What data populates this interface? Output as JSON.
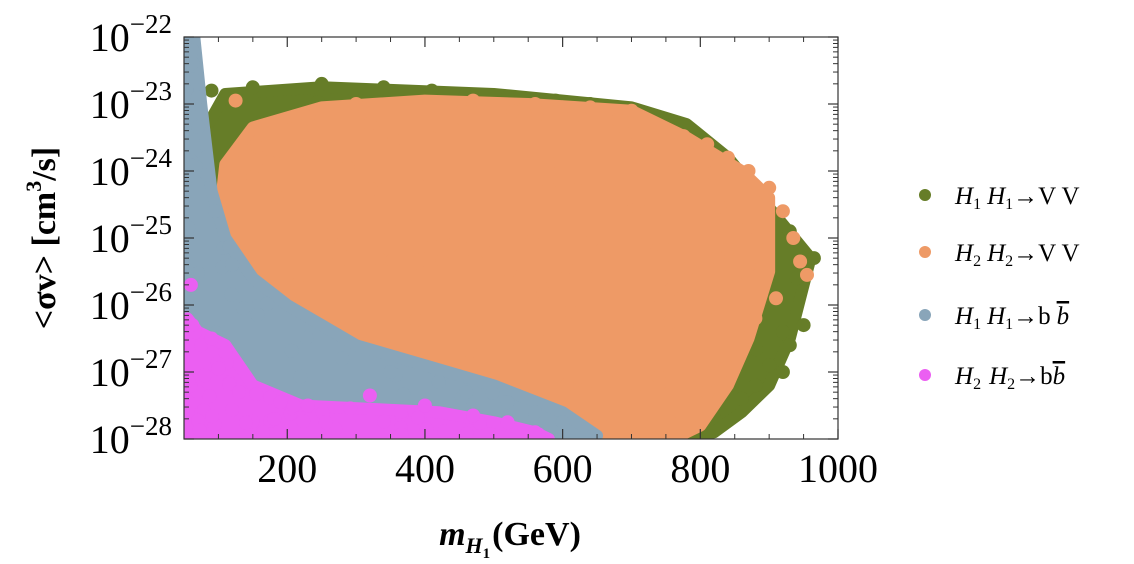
{
  "chart_data": {
    "type": "scatter",
    "xlabel": {
      "main": "m",
      "sub1": "H",
      "sub2": "1",
      "unit": "(GeV)"
    },
    "ylabel": {
      "main": "<σv> [cm",
      "sup": "3",
      "unit": "/s]"
    },
    "xlim": [
      50,
      1000
    ],
    "ylim_log10": [
      -28,
      -22
    ],
    "y_log_scale": true,
    "x_ticks": [
      200,
      400,
      600,
      800,
      1000
    ],
    "x_tick_labels": [
      "200",
      "400",
      "600",
      "800",
      "1000"
    ],
    "y_ticks": [
      -22,
      -23,
      -24,
      -25,
      -26,
      -27,
      -28
    ],
    "y_tick_base": "10",
    "y_tick_exponents": [
      "−22",
      "−23",
      "−24",
      "−25",
      "−26",
      "−27",
      "−28"
    ],
    "grid": false,
    "legend_placement": "right",
    "series": [
      {
        "legend": {
          "a": "H",
          "a_sub": "1",
          "b": "H",
          "b_sub": "1",
          "arrow": "→",
          "final": "V V"
        },
        "color": "#667d28",
        "region": [
          [
            80,
            -23.4
          ],
          [
            110,
            -22.85
          ],
          [
            250,
            -22.75
          ],
          [
            500,
            -22.85
          ],
          [
            600,
            -22.95
          ],
          [
            700,
            -23.05
          ],
          [
            780,
            -23.3
          ],
          [
            840,
            -23.8
          ],
          [
            880,
            -24.3
          ],
          [
            920,
            -24.8
          ],
          [
            960,
            -25.3
          ],
          [
            930,
            -26.5
          ],
          [
            900,
            -27.2
          ],
          [
            860,
            -27.6
          ],
          [
            820,
            -27.9
          ],
          [
            780,
            -28
          ],
          [
            100,
            -28
          ],
          [
            80,
            -27
          ]
        ],
        "points": [
          [
            90,
            -22.8
          ],
          [
            150,
            -22.75
          ],
          [
            250,
            -22.7
          ],
          [
            340,
            -22.75
          ],
          [
            410,
            -22.8
          ],
          [
            520,
            -22.9
          ],
          [
            590,
            -22.95
          ],
          [
            640,
            -23.0
          ],
          [
            760,
            -23.3
          ],
          [
            800,
            -23.5
          ],
          [
            850,
            -24.0
          ],
          [
            870,
            -24.3
          ],
          [
            900,
            -24.6
          ],
          [
            930,
            -24.9
          ],
          [
            965,
            -25.3
          ],
          [
            940,
            -25.6
          ],
          [
            900,
            -26.0
          ],
          [
            920,
            -26.4
          ],
          [
            950,
            -26.3
          ],
          [
            930,
            -26.6
          ],
          [
            900,
            -26.9
          ],
          [
            880,
            -27.2
          ],
          [
            860,
            -27.4
          ],
          [
            820,
            -27.6
          ],
          [
            790,
            -27.7
          ],
          [
            760,
            -27.9
          ],
          [
            790,
            -26.3
          ],
          [
            860,
            -25.9
          ],
          [
            840,
            -25.5
          ],
          [
            880,
            -25.2
          ],
          [
            920,
            -27.0
          ],
          [
            780,
            -27.3
          ],
          [
            740,
            -27.5
          ],
          [
            720,
            -27.8
          ]
        ]
      },
      {
        "legend": {
          "a": "H",
          "a_sub": "2",
          "b": "H",
          "b_sub": "2",
          "arrow": "→",
          "final": "V V"
        },
        "color": "#ee9a66",
        "region": [
          [
            110,
            -23.9
          ],
          [
            150,
            -23.35
          ],
          [
            250,
            -23.05
          ],
          [
            400,
            -22.95
          ],
          [
            550,
            -23.0
          ],
          [
            700,
            -23.1
          ],
          [
            780,
            -23.5
          ],
          [
            860,
            -24.0
          ],
          [
            900,
            -24.4
          ],
          [
            900,
            -25.5
          ],
          [
            870,
            -26.5
          ],
          [
            840,
            -27.2
          ],
          [
            800,
            -27.8
          ],
          [
            760,
            -28
          ],
          [
            610,
            -28
          ],
          [
            540,
            -27.95
          ],
          [
            420,
            -27.6
          ],
          [
            300,
            -27.25
          ],
          [
            220,
            -26.9
          ],
          [
            160,
            -26.3
          ],
          [
            120,
            -25.5
          ],
          [
            100,
            -24.8
          ]
        ],
        "points": [
          [
            125,
            -22.95
          ],
          [
            230,
            -23.2
          ],
          [
            300,
            -23.0
          ],
          [
            470,
            -22.95
          ],
          [
            560,
            -23.0
          ],
          [
            600,
            -23.05
          ],
          [
            640,
            -23.05
          ],
          [
            700,
            -23.1
          ],
          [
            745,
            -23.35
          ],
          [
            810,
            -23.6
          ],
          [
            840,
            -23.8
          ],
          [
            870,
            -24.0
          ],
          [
            900,
            -24.25
          ],
          [
            920,
            -24.6
          ],
          [
            935,
            -25.0
          ],
          [
            945,
            -25.35
          ],
          [
            955,
            -25.55
          ],
          [
            910,
            -25.9
          ],
          [
            880,
            -26.2
          ],
          [
            860,
            -26.6
          ],
          [
            830,
            -27.0
          ],
          [
            810,
            -27.3
          ],
          [
            770,
            -27.6
          ],
          [
            730,
            -27.8
          ],
          [
            700,
            -27.9
          ],
          [
            660,
            -27.95
          ]
        ]
      },
      {
        "legend": {
          "a": "H",
          "a_sub": "1",
          "b": "H",
          "b_sub": "1",
          "arrow": "→",
          "final": "b",
          "final_bar": "b"
        },
        "color": "#89a5b9",
        "region": [
          [
            55,
            -22
          ],
          [
            65,
            -22
          ],
          [
            75,
            -23
          ],
          [
            90,
            -24.3
          ],
          [
            110,
            -25
          ],
          [
            150,
            -25.6
          ],
          [
            200,
            -26
          ],
          [
            250,
            -26.3
          ],
          [
            300,
            -26.6
          ],
          [
            400,
            -26.9
          ],
          [
            500,
            -27.2
          ],
          [
            600,
            -27.6
          ],
          [
            650,
            -27.95
          ],
          [
            640,
            -28
          ],
          [
            55,
            -28
          ]
        ],
        "points": [
          [
            62,
            -22.2
          ],
          [
            70,
            -22.9
          ],
          [
            82,
            -23.8
          ],
          [
            95,
            -24.6
          ],
          [
            120,
            -25.4
          ],
          [
            280,
            -26.8
          ],
          [
            350,
            -27.0
          ],
          [
            420,
            -27.15
          ],
          [
            460,
            -27.3
          ],
          [
            520,
            -27.45
          ],
          [
            560,
            -27.6
          ],
          [
            600,
            -27.75
          ],
          [
            645,
            -27.95
          ]
        ]
      },
      {
        "legend": {
          "a": "H",
          "a_sub": "2",
          "b": "H",
          "b_sub": "2",
          "arrow": "→",
          "final": "b",
          "final_bar": "b"
        },
        "color": "#eb5ff2",
        "region": [
          [
            55,
            -28
          ],
          [
            55,
            -26.2
          ],
          [
            70,
            -26.4
          ],
          [
            110,
            -26.6
          ],
          [
            150,
            -27.2
          ],
          [
            220,
            -27.5
          ],
          [
            320,
            -27.55
          ],
          [
            420,
            -27.6
          ],
          [
            500,
            -27.75
          ],
          [
            560,
            -27.9
          ],
          [
            580,
            -28
          ]
        ],
        "points": [
          [
            60,
            -25.7
          ],
          [
            62,
            -26.3
          ],
          [
            75,
            -26.6
          ],
          [
            90,
            -26.5
          ],
          [
            110,
            -26.7
          ],
          [
            100,
            -26.95
          ],
          [
            80,
            -27.05
          ],
          [
            130,
            -27.3
          ],
          [
            190,
            -27.45
          ],
          [
            230,
            -27.5
          ],
          [
            320,
            -27.35
          ],
          [
            400,
            -27.5
          ],
          [
            470,
            -27.65
          ],
          [
            520,
            -27.75
          ],
          [
            560,
            -27.9
          ]
        ]
      }
    ]
  }
}
